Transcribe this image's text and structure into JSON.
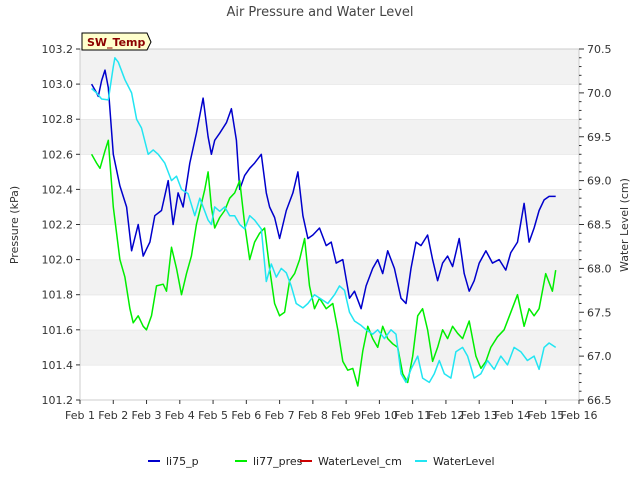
{
  "chart_data": {
    "type": "line",
    "title": "Air Pressure and Water Level",
    "badge": "SW_Temp",
    "xlabel": "",
    "ylabel_left": "Pressure (kPa)",
    "ylabel_right": "Water Level (cm)",
    "x_ticks": [
      "Feb 1",
      "Feb 2",
      "Feb 3",
      "Feb 4",
      "Feb 5",
      "Feb 6",
      "Feb 7",
      "Feb 8",
      "Feb 9",
      "Feb 10",
      "Feb 11",
      "Feb 12",
      "Feb 13",
      "Feb 14",
      "Feb 15",
      "Feb 16"
    ],
    "x_range": [
      1,
      16
    ],
    "ylim_left": [
      101.2,
      103.2
    ],
    "ylim_right": [
      66.5,
      70.5
    ],
    "y_ticks_left": [
      "101.2",
      "101.4",
      "101.6",
      "101.8",
      "102.0",
      "102.2",
      "102.4",
      "102.6",
      "102.8",
      "103.0",
      "103.2"
    ],
    "y_ticks_right": [
      "66.5",
      "67.0",
      "67.5",
      "68.0",
      "68.5",
      "69.0",
      "69.5",
      "70.0",
      "70.5"
    ],
    "grid": "horizontal bands",
    "legend_position": "bottom",
    "series": [
      {
        "name": "li75_p",
        "axis": "left",
        "color": "#0000cc",
        "x": [
          1.35,
          1.5,
          1.55,
          1.65,
          1.75,
          1.85,
          2.0,
          2.2,
          2.4,
          2.55,
          2.75,
          2.9,
          3.0,
          3.1,
          3.25,
          3.45,
          3.65,
          3.8,
          3.95,
          4.1,
          4.3,
          4.5,
          4.7,
          4.85,
          4.95,
          5.05,
          5.2,
          5.4,
          5.55,
          5.7,
          5.8,
          5.95,
          6.1,
          6.25,
          6.45,
          6.6,
          6.7,
          6.85,
          7.0,
          7.2,
          7.4,
          7.55,
          7.7,
          7.85,
          8.0,
          8.2,
          8.4,
          8.55,
          8.7,
          8.9,
          9.1,
          9.25,
          9.45,
          9.6,
          9.8,
          9.95,
          10.1,
          10.25,
          10.45,
          10.65,
          10.8,
          10.95,
          11.1,
          11.25,
          11.45,
          11.6,
          11.75,
          11.9,
          12.05,
          12.2,
          12.4,
          12.55,
          12.7,
          12.85,
          13.0,
          13.2,
          13.4,
          13.6,
          13.8,
          13.95,
          14.15,
          14.35,
          14.5,
          14.65,
          14.8,
          14.95,
          15.1,
          15.3
        ],
        "y": [
          103.0,
          102.95,
          102.93,
          103.02,
          103.08,
          102.98,
          102.6,
          102.42,
          102.3,
          102.05,
          102.2,
          102.02,
          102.06,
          102.1,
          102.25,
          102.28,
          102.45,
          102.2,
          102.38,
          102.3,
          102.55,
          102.72,
          102.92,
          102.7,
          102.6,
          102.68,
          102.72,
          102.78,
          102.86,
          102.68,
          102.4,
          102.48,
          102.52,
          102.55,
          102.6,
          102.38,
          102.3,
          102.24,
          102.12,
          102.28,
          102.38,
          102.5,
          102.25,
          102.12,
          102.14,
          102.18,
          102.08,
          102.1,
          101.98,
          102.0,
          101.78,
          101.82,
          101.72,
          101.85,
          101.95,
          102.0,
          101.92,
          102.05,
          101.95,
          101.78,
          101.75,
          101.95,
          102.1,
          102.08,
          102.14,
          102.0,
          101.88,
          101.98,
          102.02,
          101.96,
          102.12,
          101.92,
          101.82,
          101.88,
          101.98,
          102.05,
          101.98,
          102.0,
          101.94,
          102.04,
          102.1,
          102.32,
          102.1,
          102.18,
          102.28,
          102.34,
          102.36,
          102.36
        ]
      },
      {
        "name": "li77_pres",
        "axis": "left",
        "color": "#00ee00",
        "x": [
          1.35,
          1.5,
          1.6,
          1.75,
          1.85,
          2.0,
          2.2,
          2.35,
          2.5,
          2.6,
          2.75,
          2.9,
          3.0,
          3.15,
          3.3,
          3.5,
          3.6,
          3.75,
          3.9,
          4.05,
          4.2,
          4.35,
          4.5,
          4.6,
          4.75,
          4.85,
          4.95,
          5.05,
          5.2,
          5.35,
          5.5,
          5.65,
          5.8,
          5.95,
          6.1,
          6.25,
          6.4,
          6.55,
          6.7,
          6.85,
          7.0,
          7.15,
          7.3,
          7.45,
          7.6,
          7.75,
          7.9,
          8.05,
          8.2,
          8.4,
          8.6,
          8.75,
          8.9,
          9.05,
          9.2,
          9.35,
          9.5,
          9.65,
          9.8,
          9.95,
          10.1,
          10.25,
          10.4,
          10.55,
          10.7,
          10.85,
          11.0,
          11.15,
          11.3,
          11.45,
          11.6,
          11.75,
          11.9,
          12.05,
          12.2,
          12.35,
          12.5,
          12.7,
          12.9,
          13.05,
          13.2,
          13.35,
          13.55,
          13.75,
          13.95,
          14.15,
          14.35,
          14.5,
          14.65,
          14.8,
          15.0,
          15.2,
          15.3
        ],
        "y": [
          102.6,
          102.55,
          102.52,
          102.62,
          102.68,
          102.3,
          102.0,
          101.9,
          101.72,
          101.64,
          101.68,
          101.62,
          101.6,
          101.68,
          101.85,
          101.86,
          101.82,
          102.07,
          101.95,
          101.8,
          101.92,
          102.02,
          102.2,
          102.28,
          102.4,
          102.5,
          102.3,
          102.18,
          102.24,
          102.28,
          102.35,
          102.38,
          102.45,
          102.2,
          102.0,
          102.1,
          102.15,
          102.18,
          101.95,
          101.75,
          101.68,
          101.7,
          101.88,
          101.92,
          102.0,
          102.12,
          101.85,
          101.72,
          101.78,
          101.72,
          101.75,
          101.6,
          101.42,
          101.37,
          101.38,
          101.28,
          101.48,
          101.62,
          101.55,
          101.5,
          101.62,
          101.55,
          101.52,
          101.5,
          101.35,
          101.3,
          101.45,
          101.68,
          101.72,
          101.6,
          101.42,
          101.5,
          101.6,
          101.55,
          101.62,
          101.58,
          101.55,
          101.65,
          101.45,
          101.38,
          101.42,
          101.5,
          101.56,
          101.6,
          101.7,
          101.8,
          101.62,
          101.72,
          101.68,
          101.72,
          101.92,
          101.82,
          101.94
        ]
      },
      {
        "name": "WaterLevel_cm",
        "axis": "right",
        "color": "#cc0000",
        "x": [],
        "y": []
      },
      {
        "name": "WaterLevel",
        "axis": "right",
        "color": "#22e5f2",
        "x": [
          1.35,
          1.5,
          1.65,
          1.85,
          2.0,
          2.05,
          2.15,
          2.35,
          2.55,
          2.7,
          2.85,
          3.05,
          3.2,
          3.35,
          3.55,
          3.75,
          3.9,
          4.05,
          4.25,
          4.45,
          4.6,
          4.75,
          4.85,
          4.95,
          5.05,
          5.2,
          5.35,
          5.5,
          5.65,
          5.8,
          5.95,
          6.1,
          6.25,
          6.45,
          6.6,
          6.75,
          6.9,
          7.05,
          7.2,
          7.35,
          7.5,
          7.7,
          7.85,
          8.05,
          8.25,
          8.45,
          8.65,
          8.8,
          8.95,
          9.1,
          9.25,
          9.45,
          9.6,
          9.8,
          9.95,
          10.15,
          10.35,
          10.5,
          10.65,
          10.8,
          10.95,
          11.15,
          11.3,
          11.5,
          11.65,
          11.8,
          11.95,
          12.15,
          12.3,
          12.5,
          12.65,
          12.85,
          13.05,
          13.25,
          13.45,
          13.65,
          13.85,
          14.05,
          14.25,
          14.45,
          14.65,
          14.8,
          14.95,
          15.1,
          15.3
        ],
        "y": [
          70.05,
          70.0,
          69.93,
          69.92,
          70.3,
          70.4,
          70.35,
          70.15,
          70.0,
          69.7,
          69.6,
          69.3,
          69.35,
          69.3,
          69.2,
          69.0,
          69.05,
          68.9,
          68.85,
          68.6,
          68.8,
          68.65,
          68.55,
          68.5,
          68.7,
          68.65,
          68.7,
          68.6,
          68.6,
          68.5,
          68.45,
          68.6,
          68.55,
          68.45,
          67.85,
          68.05,
          67.9,
          68.0,
          67.95,
          67.8,
          67.6,
          67.55,
          67.6,
          67.7,
          67.65,
          67.6,
          67.7,
          67.8,
          67.75,
          67.5,
          67.4,
          67.35,
          67.3,
          67.25,
          67.3,
          67.2,
          67.3,
          67.25,
          66.8,
          66.7,
          66.85,
          67.0,
          66.75,
          66.7,
          66.8,
          66.95,
          66.8,
          66.75,
          67.05,
          67.1,
          67.0,
          66.75,
          66.8,
          66.95,
          66.85,
          67.0,
          66.9,
          67.1,
          67.05,
          66.95,
          67.0,
          66.85,
          67.1,
          67.15,
          67.1
        ]
      }
    ]
  }
}
